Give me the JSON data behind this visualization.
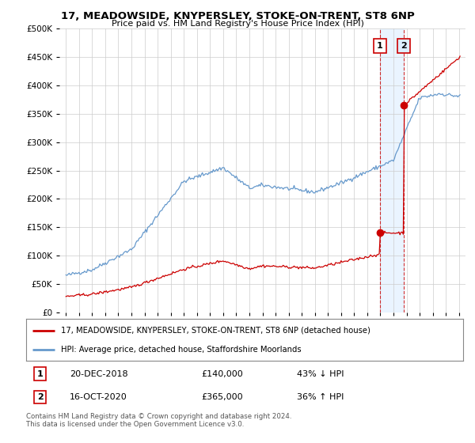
{
  "title": "17, MEADOWSIDE, KNYPERSLEY, STOKE-ON-TRENT, ST8 6NP",
  "subtitle": "Price paid vs. HM Land Registry's House Price Index (HPI)",
  "legend_line1": "17, MEADOWSIDE, KNYPERSLEY, STOKE-ON-TRENT, ST8 6NP (detached house)",
  "legend_line2": "HPI: Average price, detached house, Staffordshire Moorlands",
  "transaction1_label": "1",
  "transaction1_date": "20-DEC-2018",
  "transaction1_price": "£140,000",
  "transaction1_note": "43% ↓ HPI",
  "transaction1_year": 2018.96,
  "transaction1_price_val": 140000,
  "transaction2_label": "2",
  "transaction2_date": "16-OCT-2020",
  "transaction2_price": "£365,000",
  "transaction2_note": "36% ↑ HPI",
  "transaction2_year": 2020.79,
  "transaction2_price_val": 365000,
  "footer": "Contains HM Land Registry data © Crown copyright and database right 2024.\nThis data is licensed under the Open Government Licence v3.0.",
  "red_color": "#cc0000",
  "blue_color": "#6699cc",
  "shade_color": "#ddeeff",
  "ylim": [
    0,
    500000
  ],
  "xlim": [
    1994.5,
    2025.5
  ],
  "background_color": "#ffffff",
  "grid_color": "#cccccc"
}
